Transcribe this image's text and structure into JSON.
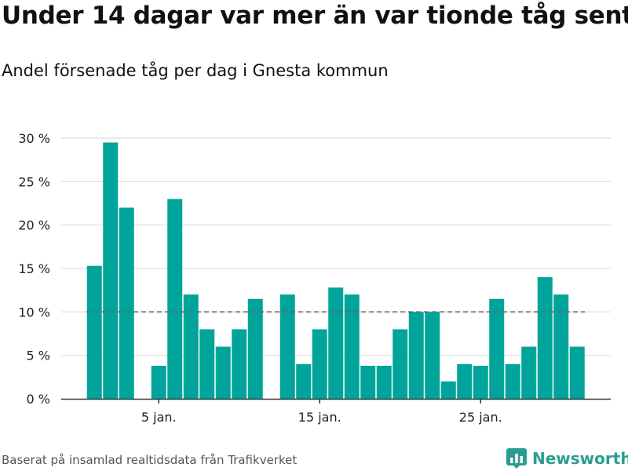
{
  "header": {
    "title": "Under 14 dagar var mer än var tionde tåg sent",
    "subtitle": "Andel försenade tåg per dag i Gnesta kommun"
  },
  "footer": {
    "source": "Baserat på insamlad realtidsdata från Trafikverket",
    "brand_name": "Newsworthy"
  },
  "colors": {
    "bar": "#00a49a",
    "reference_line": "#666666",
    "grid": "#dddddd",
    "axis": "#333333",
    "brand": "#2a9d8f"
  },
  "icons": {
    "brand": "bar-chart-logo-icon"
  },
  "chart_data": {
    "type": "bar",
    "x": [
      "1 jan.",
      "2 jan.",
      "3 jan.",
      "4 jan.",
      "5 jan.",
      "6 jan.",
      "7 jan.",
      "8 jan.",
      "9 jan.",
      "10 jan.",
      "11 jan.",
      "12 jan.",
      "13 jan.",
      "14 jan.",
      "15 jan.",
      "16 jan.",
      "17 jan.",
      "18 jan.",
      "19 jan.",
      "20 jan.",
      "21 jan.",
      "22 jan.",
      "23 jan.",
      "24 jan.",
      "25 jan.",
      "26 jan.",
      "27 jan.",
      "28 jan.",
      "29 jan.",
      "30 jan.",
      "31 jan.",
      "1 feb.",
      "2 feb."
    ],
    "values": [
      15.3,
      29.5,
      22.0,
      null,
      3.8,
      23.0,
      12.0,
      8.0,
      6.0,
      8.0,
      11.5,
      null,
      12.0,
      4.0,
      8.0,
      12.8,
      12.0,
      3.8,
      3.8,
      8.0,
      10.0,
      10.0,
      2.0,
      4.0,
      3.8,
      11.5,
      4.0,
      6.0,
      14.0,
      12.0,
      6.0,
      null,
      null
    ],
    "xticks": [
      {
        "x": "5 jan.",
        "label": "5 jan."
      },
      {
        "x": "15 jan.",
        "label": "15 jan."
      },
      {
        "x": "25 jan.",
        "label": "25 jan."
      }
    ],
    "yticks": [
      {
        "value": 0,
        "label": "0 %"
      },
      {
        "value": 5,
        "label": "5 %"
      },
      {
        "value": 10,
        "label": "10 %"
      },
      {
        "value": 15,
        "label": "15 %"
      },
      {
        "value": 20,
        "label": "20 %"
      },
      {
        "value": 25,
        "label": "25 %"
      },
      {
        "value": 30,
        "label": "30 %"
      }
    ],
    "ylim": [
      0,
      30
    ],
    "reference_line": 10,
    "grid": true,
    "legend": "none"
  }
}
